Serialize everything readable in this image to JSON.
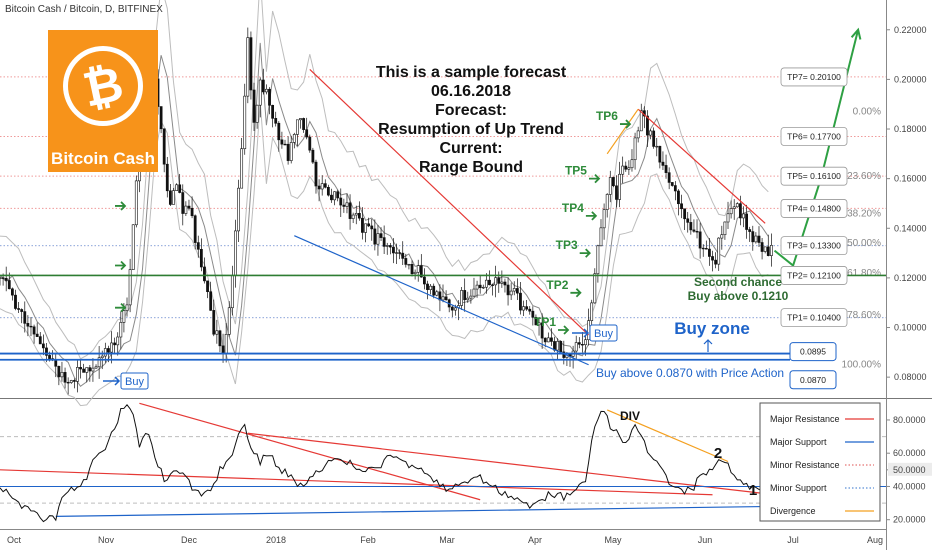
{
  "header": {
    "title": "Bitcoin Cash / Bitcoin, D, BITFINEX"
  },
  "logo": {
    "text": "Bitcoin Cash",
    "symbol": "₿",
    "color": "#f7931a"
  },
  "forecast": {
    "lines": [
      "This is a sample forecast",
      "06.16.2018",
      "Forecast:",
      "Resumption of Up Trend",
      "Current:",
      "Range Bound"
    ]
  },
  "annotations": {
    "second_chance": "Second chance",
    "buy_above_0121": "Buy above 0.1210",
    "buy_zone": "Buy zone",
    "buy_above_0087": "Buy above 0.0870 with Price Action",
    "buy_label": "Buy",
    "div": "DIV",
    "osc_1": "1",
    "osc_2": "2"
  },
  "tp_steps": [
    "TP1",
    "TP2",
    "TP3",
    "TP4",
    "TP5",
    "TP6"
  ],
  "targets": [
    {
      "label": "TP7= 0.20100",
      "price": 0.201
    },
    {
      "label": "TP6= 0.17700",
      "price": 0.177
    },
    {
      "label": "TP5= 0.16100",
      "price": 0.161
    },
    {
      "label": "TP4= 0.14800",
      "price": 0.148
    },
    {
      "label": "TP3= 0.13300",
      "price": 0.133
    },
    {
      "label": "TP2= 0.12100",
      "price": 0.121
    },
    {
      "label": "TP1= 0.10400",
      "price": 0.104
    }
  ],
  "buy_levels": [
    {
      "label": "0.0895",
      "price": 0.0895
    },
    {
      "label": "0.0870",
      "price": 0.087
    }
  ],
  "fib_levels": [
    {
      "label": "0.00%",
      "price": 0.187
    },
    {
      "label": "23.60%",
      "price": 0.161
    },
    {
      "label": "38.20%",
      "price": 0.146
    },
    {
      "label": "50.00%",
      "price": 0.134
    },
    {
      "label": "61.80%",
      "price": 0.122
    },
    {
      "label": "78.60%",
      "price": 0.105
    },
    {
      "label": "100.00%",
      "price": 0.085
    }
  ],
  "legend": [
    {
      "label": "Major Resistance",
      "color": "#e53935",
      "style": "solid"
    },
    {
      "label": "Major Support",
      "color": "#1e63c9",
      "style": "solid"
    },
    {
      "label": "Minor Resistance",
      "color": "#e57373",
      "style": "dotted"
    },
    {
      "label": "Minor Support",
      "color": "#5b8fd6",
      "style": "dotted"
    },
    {
      "label": "Divergence",
      "color": "#f4a020",
      "style": "solid"
    }
  ],
  "colors": {
    "major_resistance": "#e53935",
    "major_support": "#1e63c9",
    "green_level": "#2e7d32",
    "arrow_green": "#2ea043",
    "candle": "#111111",
    "band": "#bdbdbd",
    "logo": "#f7931a"
  },
  "chart_data": {
    "type": "candlestick",
    "title": "Bitcoin Cash / Bitcoin, D, BITFINEX",
    "price_axis": {
      "range": [
        0.072,
        0.232
      ],
      "ticks": [
        {
          "label": "0.22000",
          "value": 0.22
        },
        {
          "label": "0.20000",
          "value": 0.2
        },
        {
          "label": "0.18000",
          "value": 0.18
        },
        {
          "label": "0.16000",
          "value": 0.16
        },
        {
          "label": "0.14000",
          "value": 0.14
        },
        {
          "label": "0.12000",
          "value": 0.12
        },
        {
          "label": "0.10000",
          "value": 0.1
        },
        {
          "label": "0.08000",
          "value": 0.08
        }
      ]
    },
    "time_axis": {
      "ticks": [
        "Oct",
        "Nov",
        "Dec",
        "2018",
        "Feb",
        "Mar",
        "Apr",
        "May",
        "Jun",
        "Jul",
        "Aug"
      ]
    },
    "price_path": [
      [
        0,
        0.12
      ],
      [
        4,
        0.112
      ],
      [
        8,
        0.103
      ],
      [
        12,
        0.095
      ],
      [
        16,
        0.088
      ],
      [
        19,
        0.082
      ],
      [
        22,
        0.078
      ],
      [
        26,
        0.082
      ],
      [
        30,
        0.086
      ],
      [
        34,
        0.09
      ],
      [
        38,
        0.095
      ],
      [
        41,
        0.11
      ],
      [
        43,
        0.14
      ],
      [
        45,
        0.175
      ],
      [
        47,
        0.205
      ],
      [
        49,
        0.215
      ],
      [
        51,
        0.19
      ],
      [
        53,
        0.165
      ],
      [
        55,
        0.15
      ],
      [
        57,
        0.16
      ],
      [
        59,
        0.145
      ],
      [
        61,
        0.15
      ],
      [
        63,
        0.135
      ],
      [
        66,
        0.12
      ],
      [
        69,
        0.1
      ],
      [
        72,
        0.09
      ],
      [
        75,
        0.12
      ],
      [
        78,
        0.175
      ],
      [
        80,
        0.215
      ],
      [
        82,
        0.18
      ],
      [
        84,
        0.2
      ],
      [
        87,
        0.19
      ],
      [
        90,
        0.175
      ],
      [
        93,
        0.17
      ],
      [
        96,
        0.185
      ],
      [
        99,
        0.175
      ],
      [
        102,
        0.16
      ],
      [
        106,
        0.155
      ],
      [
        110,
        0.15
      ],
      [
        114,
        0.145
      ],
      [
        118,
        0.14
      ],
      [
        122,
        0.135
      ],
      [
        126,
        0.13
      ],
      [
        130,
        0.126
      ],
      [
        134,
        0.124
      ],
      [
        138,
        0.118
      ],
      [
        142,
        0.112
      ],
      [
        146,
        0.11
      ],
      [
        150,
        0.113
      ],
      [
        154,
        0.116
      ],
      [
        158,
        0.12
      ],
      [
        162,
        0.117
      ],
      [
        166,
        0.113
      ],
      [
        170,
        0.107
      ],
      [
        174,
        0.099
      ],
      [
        178,
        0.093
      ],
      [
        181,
        0.091
      ],
      [
        184,
        0.09
      ],
      [
        187,
        0.092
      ],
      [
        189,
        0.097
      ],
      [
        191,
        0.112
      ],
      [
        193,
        0.13
      ],
      [
        195,
        0.15
      ],
      [
        197,
        0.162
      ],
      [
        199,
        0.153
      ],
      [
        201,
        0.165
      ],
      [
        203,
        0.162
      ],
      [
        205,
        0.175
      ],
      [
        207,
        0.187
      ],
      [
        209,
        0.18
      ],
      [
        211,
        0.173
      ],
      [
        213,
        0.168
      ],
      [
        216,
        0.158
      ],
      [
        219,
        0.15
      ],
      [
        222,
        0.143
      ],
      [
        225,
        0.137
      ],
      [
        228,
        0.13
      ],
      [
        231,
        0.128
      ],
      [
        234,
        0.145
      ],
      [
        237,
        0.149
      ],
      [
        240,
        0.143
      ],
      [
        243,
        0.137
      ],
      [
        246,
        0.133
      ],
      [
        249,
        0.131
      ]
    ],
    "trendlines": [
      {
        "name": "resistance-1",
        "points": [
          [
            100,
            0.204
          ],
          [
            190,
            0.097
          ]
        ]
      },
      {
        "name": "resistance-2",
        "points": [
          [
            206,
            0.188
          ],
          [
            247,
            0.142
          ]
        ]
      },
      {
        "name": "support-1",
        "points": [
          [
            95,
            0.137
          ],
          [
            190,
            0.085
          ]
        ]
      },
      {
        "name": "trend-up-1",
        "points": [
          [
            196,
            0.17
          ],
          [
            206,
            0.188
          ]
        ]
      }
    ],
    "forecast_path": [
      [
        250,
        0.131
      ],
      [
        256,
        0.125
      ],
      [
        265,
        0.16
      ],
      [
        277,
        0.22
      ]
    ],
    "oscillator": {
      "range": [
        15,
        92
      ],
      "ticks": [
        {
          "label": "80.0000",
          "value": 80
        },
        {
          "label": "60.0000",
          "value": 60
        },
        {
          "label": "50.0000",
          "value": 50
        },
        {
          "label": "40.0000",
          "value": 40
        },
        {
          "label": "20.0000",
          "value": 20
        }
      ],
      "path": [
        [
          0,
          40
        ],
        [
          5,
          32
        ],
        [
          10,
          24
        ],
        [
          15,
          20
        ],
        [
          18,
          22
        ],
        [
          21,
          36
        ],
        [
          24,
          38
        ],
        [
          27,
          42
        ],
        [
          30,
          55
        ],
        [
          33,
          60
        ],
        [
          36,
          72
        ],
        [
          39,
          85
        ],
        [
          41,
          90
        ],
        [
          43,
          82
        ],
        [
          45,
          66
        ],
        [
          48,
          72
        ],
        [
          50,
          55
        ],
        [
          53,
          45
        ],
        [
          56,
          48
        ],
        [
          59,
          50
        ],
        [
          62,
          40
        ],
        [
          65,
          34
        ],
        [
          68,
          36
        ],
        [
          71,
          50
        ],
        [
          74,
          56
        ],
        [
          77,
          70
        ],
        [
          79,
          75
        ],
        [
          81,
          62
        ],
        [
          84,
          55
        ],
        [
          87,
          60
        ],
        [
          90,
          52
        ],
        [
          94,
          45
        ],
        [
          98,
          40
        ],
        [
          102,
          48
        ],
        [
          106,
          55
        ],
        [
          110,
          58
        ],
        [
          114,
          52
        ],
        [
          118,
          48
        ],
        [
          122,
          52
        ],
        [
          126,
          58
        ],
        [
          130,
          55
        ],
        [
          134,
          52
        ],
        [
          138,
          48
        ],
        [
          142,
          40
        ],
        [
          146,
          38
        ],
        [
          150,
          42
        ],
        [
          154,
          46
        ],
        [
          158,
          42
        ],
        [
          162,
          36
        ],
        [
          166,
          32
        ],
        [
          170,
          28
        ],
        [
          174,
          30
        ],
        [
          178,
          36
        ],
        [
          182,
          34
        ],
        [
          186,
          38
        ],
        [
          189,
          42
        ],
        [
          191,
          70
        ],
        [
          193,
          80
        ],
        [
          195,
          86
        ],
        [
          197,
          76
        ],
        [
          199,
          72
        ],
        [
          201,
          66
        ],
        [
          203,
          70
        ],
        [
          205,
          78
        ],
        [
          207,
          70
        ],
        [
          209,
          62
        ],
        [
          212,
          55
        ],
        [
          215,
          45
        ],
        [
          218,
          40
        ],
        [
          221,
          38
        ],
        [
          224,
          40
        ],
        [
          227,
          48
        ],
        [
          230,
          52
        ],
        [
          233,
          56
        ],
        [
          236,
          50
        ],
        [
          239,
          44
        ],
        [
          242,
          40
        ],
        [
          245,
          37
        ],
        [
          248,
          36
        ]
      ],
      "trendlines": [
        {
          "name": "osc-resistance-1",
          "points": [
            [
              0,
              50
            ],
            [
              230,
              35
            ]
          ]
        },
        {
          "name": "osc-resistance-2",
          "points": [
            [
              45,
              90
            ],
            [
              155,
              32
            ]
          ]
        },
        {
          "name": "osc-resistance-3",
          "points": [
            [
              80,
              72
            ],
            [
              250,
              35
            ]
          ]
        },
        {
          "name": "osc-support-1",
          "points": [
            [
              18,
              22
            ],
            [
              250,
              28
            ]
          ]
        },
        {
          "name": "osc-divergence",
          "points": [
            [
              196,
              86
            ],
            [
              235,
              55
            ]
          ]
        }
      ]
    }
  }
}
